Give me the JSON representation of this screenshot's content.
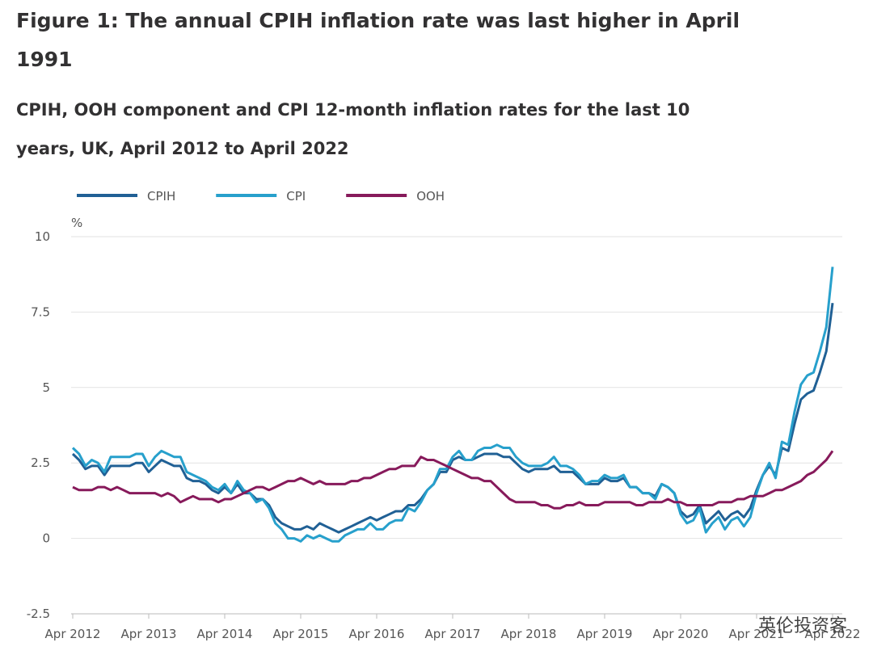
{
  "chart_data": {
    "type": "line",
    "title": "Figure 1: The annual CPIH inflation rate was last higher in April 1991",
    "subtitle": "CPIH, OOH component and CPI 12-month inflation rates for the last 10 years, UK, April 2012 to April 2022",
    "y_unit": "%",
    "watermark": "英伦投资客",
    "categories": [
      "Apr 2012",
      null,
      null,
      null,
      null,
      null,
      null,
      null,
      null,
      null,
      null,
      null,
      "Apr 2013",
      null,
      null,
      null,
      null,
      null,
      null,
      null,
      null,
      null,
      null,
      null,
      "Apr 2014",
      null,
      null,
      null,
      null,
      null,
      null,
      null,
      null,
      null,
      null,
      null,
      "Apr 2015",
      null,
      null,
      null,
      null,
      null,
      null,
      null,
      null,
      null,
      null,
      null,
      "Apr 2016",
      null,
      null,
      null,
      null,
      null,
      null,
      null,
      null,
      null,
      null,
      null,
      "Apr 2017",
      null,
      null,
      null,
      null,
      null,
      null,
      null,
      null,
      null,
      null,
      null,
      "Apr 2018",
      null,
      null,
      null,
      null,
      null,
      null,
      null,
      null,
      null,
      null,
      null,
      "Apr 2019",
      null,
      null,
      null,
      null,
      null,
      null,
      null,
      null,
      null,
      null,
      null,
      "Apr 2020",
      null,
      null,
      null,
      null,
      null,
      null,
      null,
      null,
      null,
      null,
      null,
      "Apr 2021",
      null,
      null,
      null,
      null,
      null,
      null,
      null,
      null,
      null,
      null,
      null,
      "Apr 2022"
    ],
    "series": [
      {
        "name": "CPIH",
        "color": "#206095",
        "values": [
          2.8,
          2.6,
          2.3,
          2.4,
          2.4,
          2.1,
          2.4,
          2.4,
          2.4,
          2.4,
          2.5,
          2.5,
          2.2,
          2.4,
          2.6,
          2.5,
          2.4,
          2.4,
          2.0,
          1.9,
          1.9,
          1.8,
          1.6,
          1.5,
          1.7,
          1.5,
          1.8,
          1.5,
          1.5,
          1.3,
          1.3,
          1.1,
          0.7,
          0.5,
          0.4,
          0.3,
          0.3,
          0.4,
          0.3,
          0.5,
          0.4,
          0.3,
          0.2,
          0.3,
          0.4,
          0.5,
          0.6,
          0.7,
          0.6,
          0.7,
          0.8,
          0.9,
          0.9,
          1.1,
          1.1,
          1.3,
          1.6,
          1.8,
          2.2,
          2.2,
          2.6,
          2.7,
          2.6,
          2.6,
          2.7,
          2.8,
          2.8,
          2.8,
          2.7,
          2.7,
          2.5,
          2.3,
          2.2,
          2.3,
          2.3,
          2.3,
          2.4,
          2.2,
          2.2,
          2.2,
          2.0,
          1.8,
          1.8,
          1.8,
          2.0,
          1.9,
          1.9,
          2.0,
          1.7,
          1.7,
          1.5,
          1.5,
          1.4,
          1.8,
          1.7,
          1.5,
          0.9,
          0.7,
          0.8,
          1.1,
          0.5,
          0.7,
          0.9,
          0.6,
          0.8,
          0.9,
          0.7,
          1.0,
          1.6,
          2.1,
          2.4,
          2.1,
          3.0,
          2.9,
          3.8,
          4.6,
          4.8,
          4.9,
          5.5,
          6.2,
          7.8
        ]
      },
      {
        "name": "CPI",
        "color": "#27a0cc",
        "values": [
          3.0,
          2.8,
          2.4,
          2.6,
          2.5,
          2.2,
          2.7,
          2.7,
          2.7,
          2.7,
          2.8,
          2.8,
          2.4,
          2.7,
          2.9,
          2.8,
          2.7,
          2.7,
          2.2,
          2.1,
          2.0,
          1.9,
          1.7,
          1.6,
          1.8,
          1.5,
          1.9,
          1.6,
          1.5,
          1.2,
          1.3,
          1.0,
          0.5,
          0.3,
          0.0,
          0.0,
          -0.1,
          0.1,
          0.0,
          0.1,
          0.0,
          -0.1,
          -0.1,
          0.1,
          0.2,
          0.3,
          0.3,
          0.5,
          0.3,
          0.3,
          0.5,
          0.6,
          0.6,
          1.0,
          0.9,
          1.2,
          1.6,
          1.8,
          2.3,
          2.3,
          2.7,
          2.9,
          2.6,
          2.6,
          2.9,
          3.0,
          3.0,
          3.1,
          3.0,
          3.0,
          2.7,
          2.5,
          2.4,
          2.4,
          2.4,
          2.5,
          2.7,
          2.4,
          2.4,
          2.3,
          2.1,
          1.8,
          1.9,
          1.9,
          2.1,
          2.0,
          2.0,
          2.1,
          1.7,
          1.7,
          1.5,
          1.5,
          1.3,
          1.8,
          1.7,
          1.5,
          0.8,
          0.5,
          0.6,
          1.0,
          0.2,
          0.5,
          0.7,
          0.3,
          0.6,
          0.7,
          0.4,
          0.7,
          1.5,
          2.1,
          2.5,
          2.0,
          3.2,
          3.1,
          4.2,
          5.1,
          5.4,
          5.5,
          6.2,
          7.0,
          9.0
        ]
      },
      {
        "name": "OOH",
        "color": "#871a5b",
        "values": [
          1.7,
          1.6,
          1.6,
          1.6,
          1.7,
          1.7,
          1.6,
          1.7,
          1.6,
          1.5,
          1.5,
          1.5,
          1.5,
          1.5,
          1.4,
          1.5,
          1.4,
          1.2,
          1.3,
          1.4,
          1.3,
          1.3,
          1.3,
          1.2,
          1.3,
          1.3,
          1.4,
          1.5,
          1.6,
          1.7,
          1.7,
          1.6,
          1.7,
          1.8,
          1.9,
          1.9,
          2.0,
          1.9,
          1.8,
          1.9,
          1.8,
          1.8,
          1.8,
          1.8,
          1.9,
          1.9,
          2.0,
          2.0,
          2.1,
          2.2,
          2.3,
          2.3,
          2.4,
          2.4,
          2.4,
          2.7,
          2.6,
          2.6,
          2.5,
          2.4,
          2.3,
          2.2,
          2.1,
          2.0,
          2.0,
          1.9,
          1.9,
          1.7,
          1.5,
          1.3,
          1.2,
          1.2,
          1.2,
          1.2,
          1.1,
          1.1,
          1.0,
          1.0,
          1.1,
          1.1,
          1.2,
          1.1,
          1.1,
          1.1,
          1.2,
          1.2,
          1.2,
          1.2,
          1.2,
          1.1,
          1.1,
          1.2,
          1.2,
          1.2,
          1.3,
          1.2,
          1.2,
          1.1,
          1.1,
          1.1,
          1.1,
          1.1,
          1.2,
          1.2,
          1.2,
          1.3,
          1.3,
          1.4,
          1.4,
          1.4,
          1.5,
          1.6,
          1.6,
          1.7,
          1.8,
          1.9,
          2.1,
          2.2,
          2.4,
          2.6,
          2.9
        ]
      }
    ],
    "ylim": [
      -2.5,
      10
    ],
    "yticks": [
      -2.5,
      0,
      2.5,
      5,
      7.5,
      10
    ],
    "grid": true
  }
}
